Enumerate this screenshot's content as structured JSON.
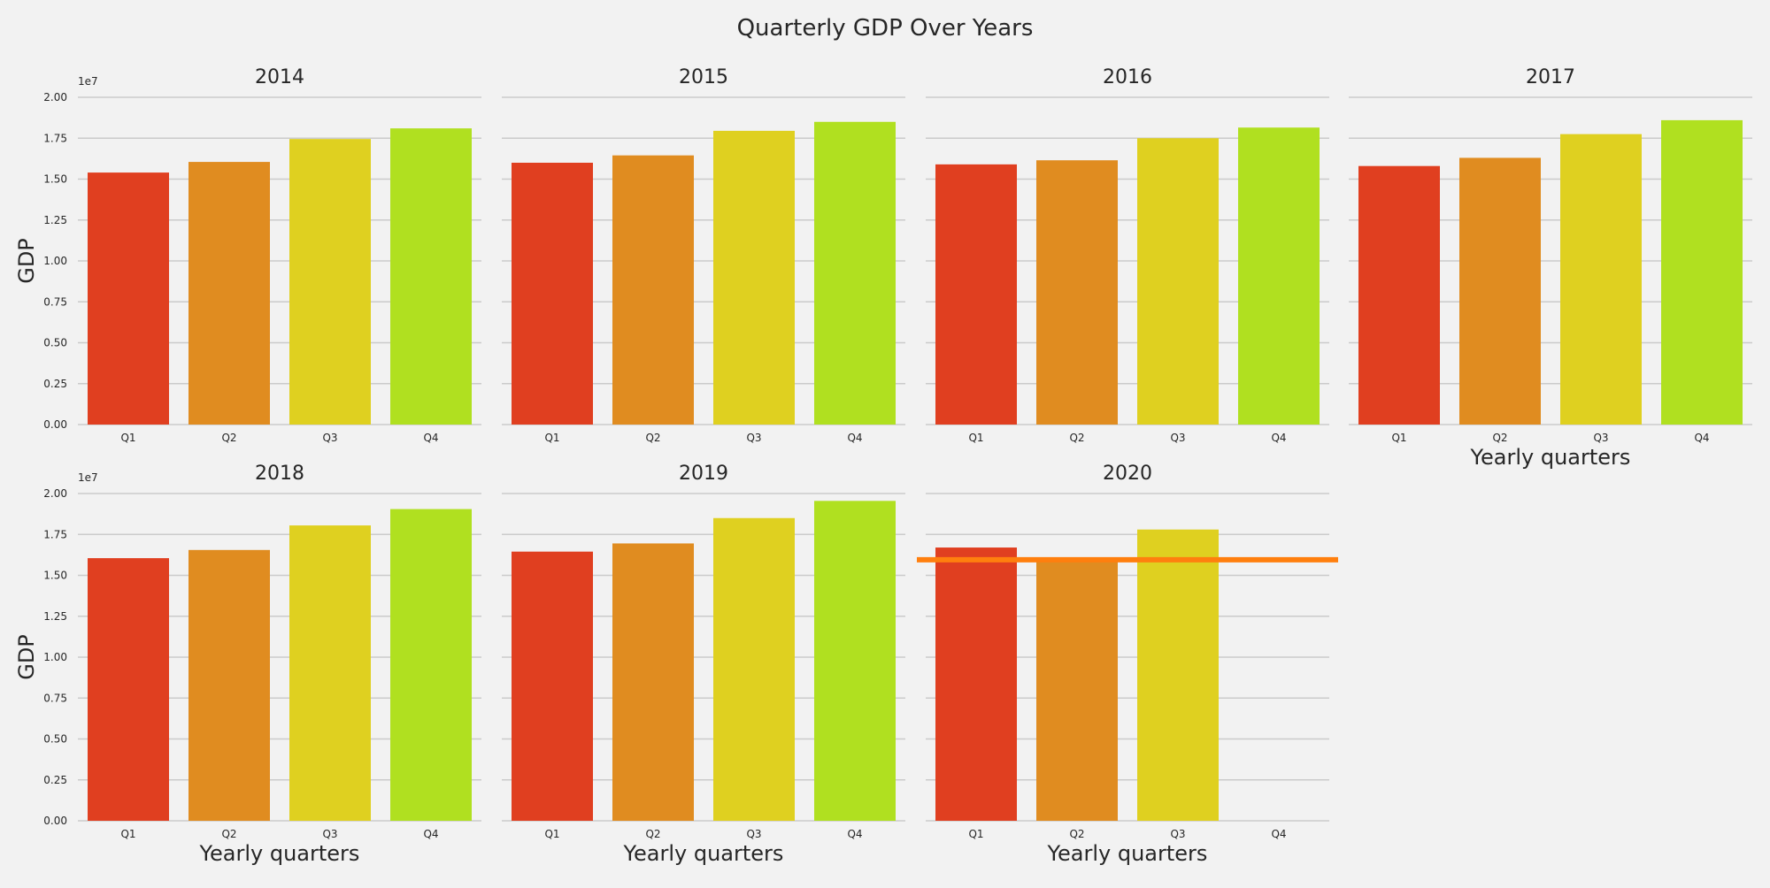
{
  "chart_data": {
    "type": "bar",
    "title": "Quarterly GDP Over Years",
    "categories": [
      "Q1",
      "Q2",
      "Q3",
      "Q4"
    ],
    "scale_label": "1e7",
    "y_scale_factor": 10000000,
    "ylabel": "GDP",
    "xlabel": "Yearly quarters",
    "ylim": [
      0,
      2.0
    ],
    "yticks": [
      "0.00",
      "0.25",
      "0.50",
      "0.75",
      "1.00",
      "1.25",
      "1.50",
      "1.75",
      "2.00"
    ],
    "grid": true,
    "bar_colors": [
      "#e03f20",
      "#e08c20",
      "#dfd020",
      "#b0e020"
    ],
    "reference_line_color": "#ff7f0e",
    "panels": [
      {
        "title": "2014",
        "values": [
          15400000,
          16050000,
          17450000,
          18100000
        ]
      },
      {
        "title": "2015",
        "values": [
          16000000,
          16450000,
          17950000,
          18500000
        ]
      },
      {
        "title": "2016",
        "values": [
          15900000,
          16150000,
          17500000,
          18150000
        ]
      },
      {
        "title": "2017",
        "values": [
          15800000,
          16300000,
          17750000,
          18600000
        ]
      },
      {
        "title": "2018",
        "values": [
          16050000,
          16550000,
          18050000,
          19050000
        ]
      },
      {
        "title": "2019",
        "values": [
          16450000,
          16950000,
          18500000,
          19550000
        ]
      },
      {
        "title": "2020",
        "values": [
          16700000,
          15900000,
          17800000,
          null
        ],
        "reference_line": 15950000
      }
    ]
  }
}
